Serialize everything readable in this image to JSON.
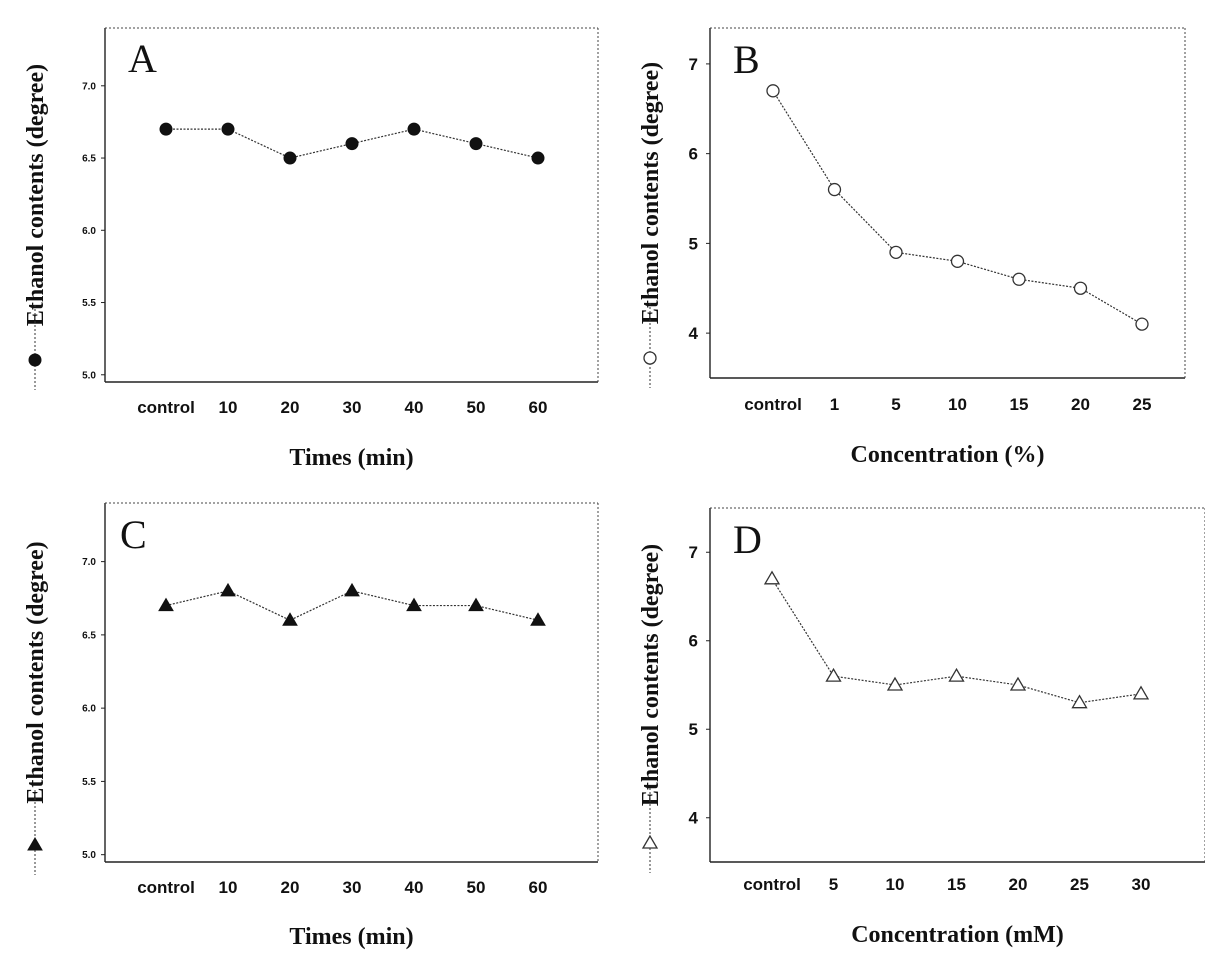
{
  "chart_data": [
    {
      "type": "line",
      "panel_label": "A",
      "xlabel": "Times (min)",
      "ylabel": "Ethanol contents (degree)",
      "categories": [
        "control",
        "10",
        "20",
        "30",
        "40",
        "50",
        "60"
      ],
      "series": [
        {
          "marker": "filled-circle",
          "values": [
            6.7,
            6.7,
            6.5,
            6.6,
            6.7,
            6.6,
            6.5
          ]
        }
      ],
      "ylim": [
        4.95,
        7.4
      ],
      "yticks": [
        "7.0",
        "6.5",
        "6.0",
        "5.5",
        "5.0"
      ],
      "tick_labels_visible": [
        "control",
        "10",
        "20",
        "30",
        "40",
        "50",
        "60"
      ],
      "grid": false
    },
    {
      "type": "line",
      "panel_label": "B",
      "xlabel": "Concentration (%)",
      "ylabel": "Ethanol contents (degree)",
      "categories": [
        "control",
        "1",
        "5",
        "10",
        "15",
        "20",
        "25"
      ],
      "series": [
        {
          "marker": "open-circle",
          "values": [
            6.7,
            5.6,
            4.9,
            4.8,
            4.6,
            4.5,
            4.1
          ]
        }
      ],
      "ylim": [
        3.5,
        7.4
      ],
      "yticks": [
        "7",
        "6",
        "5",
        "4"
      ],
      "grid": false
    },
    {
      "type": "line",
      "panel_label": "C",
      "xlabel": "Times (min)",
      "ylabel": "Ethanol contents (degree)",
      "categories": [
        "control",
        "10",
        "20",
        "30",
        "40",
        "50",
        "60"
      ],
      "series": [
        {
          "marker": "filled-triangle",
          "values": [
            6.7,
            6.8,
            6.6,
            6.8,
            6.7,
            6.7,
            6.6
          ]
        }
      ],
      "ylim": [
        4.95,
        7.4
      ],
      "yticks": [
        "7.0",
        "6.5",
        "6.0",
        "5.5",
        "5.0"
      ],
      "grid": false
    },
    {
      "type": "line",
      "panel_label": "D",
      "xlabel": "Concentration (mM)",
      "ylabel": "Ethanol contents (degree)",
      "categories": [
        "control",
        "5",
        "10",
        "15",
        "20",
        "25",
        "30"
      ],
      "series": [
        {
          "marker": "open-triangle",
          "values": [
            6.7,
            5.6,
            5.5,
            5.6,
            5.5,
            5.3,
            5.4
          ]
        }
      ],
      "ylim": [
        3.5,
        7.5
      ],
      "yticks": [
        "7",
        "6",
        "5",
        "4"
      ],
      "grid": false
    }
  ]
}
